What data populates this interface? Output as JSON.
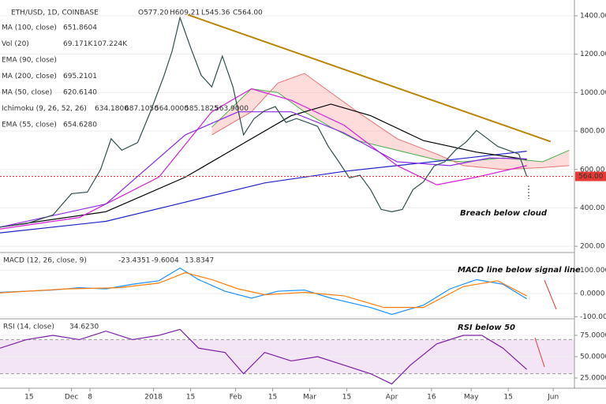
{
  "header": {
    "symbol": "ETH/USD, 1D, COINBASE",
    "ohlc": [
      "O577.20",
      "H609.21",
      "L545.36",
      "C564.00"
    ]
  },
  "indicators": [
    {
      "name": "MA (100, close)",
      "values": [
        "651.8604"
      ],
      "colors": [
        "#000000"
      ]
    },
    {
      "name": "Vol (20)",
      "values": [
        "69.171K",
        "107.224K"
      ],
      "colors": [
        "#d9534f",
        "#1e62c8"
      ]
    },
    {
      "name": "EMA (90, close)",
      "values": [],
      "colors": []
    },
    {
      "name": "MA (200, close)",
      "values": [
        "695.2101"
      ],
      "colors": [
        "#1e22c8"
      ]
    },
    {
      "name": "MA (50, close)",
      "values": [
        "620.6140"
      ],
      "colors": [
        "#d61fd6"
      ]
    },
    {
      "name": "Ichimoku (9, 26, 52, 26)",
      "values": [
        "634.1800",
        "687.1050",
        "564.0000",
        "585.1825",
        "563.9000"
      ],
      "colors": [
        "#1e62c8",
        "#8b0000",
        "#6b8e23",
        "#2e8b57",
        "#d9534f"
      ]
    },
    {
      "name": "EMA (55, close)",
      "values": [
        "654.6280"
      ],
      "colors": [
        "#8a2be2"
      ]
    }
  ],
  "chart_data": [
    {
      "type": "line",
      "ylim": [
        176,
        1482
      ],
      "yticks": [
        {
          "value": 200,
          "label": "200.00"
        },
        {
          "value": 400,
          "label": "400.00"
        },
        {
          "value": 600,
          "label": "600.00"
        },
        {
          "value": 800,
          "label": "800.00"
        },
        {
          "value": 1000,
          "label": "1000.00"
        },
        {
          "value": 1200,
          "label": "1200.00"
        },
        {
          "value": 1400,
          "label": "1400.00"
        }
      ],
      "last_price": {
        "value": 564,
        "label": "564.00"
      },
      "cloud": {
        "x": [
          80,
          95,
          105,
          115,
          125,
          135,
          150,
          165,
          175,
          190,
          205,
          215
        ],
        "span_a": [
          820,
          1020,
          1000,
          900,
          820,
          750,
          700,
          650,
          640,
          660,
          640,
          700
        ],
        "span_b": [
          780,
          900,
          1050,
          1100,
          1000,
          900,
          760,
          680,
          620,
          600,
          610,
          620
        ]
      },
      "trendline": {
        "x": [
          71,
          208
        ],
        "values": [
          1405,
          745
        ],
        "color": "#b8860b"
      },
      "series": [
        {
          "color": "#1e22c8",
          "x": [
            0,
            40,
            70,
            100,
            130,
            150,
            170,
            199
          ],
          "values": [
            270,
            330,
            430,
            530,
            590,
            620,
            650,
            695
          ]
        },
        {
          "color": "#000000",
          "x": [
            0,
            40,
            70,
            90,
            110,
            125,
            140,
            160,
            180,
            199
          ],
          "values": [
            300,
            380,
            560,
            720,
            880,
            940,
            880,
            750,
            690,
            652
          ]
        },
        {
          "color": "#d61fd6",
          "x": [
            0,
            30,
            60,
            80,
            95,
            110,
            130,
            150,
            165,
            180,
            199
          ],
          "values": [
            290,
            350,
            560,
            900,
            1020,
            960,
            830,
            620,
            520,
            560,
            620
          ]
        },
        {
          "color": "#8a2be2",
          "x": [
            0,
            40,
            70,
            90,
            110,
            130,
            150,
            170,
            185,
            199
          ],
          "values": [
            300,
            420,
            780,
            900,
            900,
            790,
            640,
            620,
            660,
            655
          ]
        },
        {
          "color": "#2f4f4f",
          "x": [
            0,
            10,
            20,
            27,
            33,
            38,
            42,
            46,
            52,
            57,
            62,
            65,
            68,
            72,
            76,
            80,
            84,
            88,
            92,
            96,
            100,
            104,
            108,
            112,
            116,
            120,
            124,
            128,
            132,
            136,
            140,
            144,
            148,
            152,
            156,
            160,
            164,
            168,
            172,
            176,
            180,
            184,
            188,
            192,
            196,
            199
          ],
          "values": [
            300,
            318,
            363,
            474,
            482,
            600,
            760,
            700,
            740,
            906,
            1090,
            1215,
            1390,
            1235,
            1090,
            1030,
            1190,
            1030,
            780,
            865,
            906,
            927,
            845,
            865,
            845,
            824,
            720,
            640,
            556,
            570,
            495,
            392,
            380,
            392,
            495,
            536,
            618,
            640,
            700,
            742,
            803,
            762,
            720,
            700,
            680,
            564
          ]
        }
      ],
      "annotation": "Breach below cloud"
    },
    {
      "type": "line",
      "title": "MACD (12, 26, close, 9)",
      "readouts": [
        "-23.4351",
        "-9.6004",
        "13.8347"
      ],
      "ylim": [
        -102,
        170
      ],
      "yticks": [
        {
          "value": -100,
          "label": "-100.0000"
        },
        {
          "value": 0,
          "label": "0.0000"
        },
        {
          "value": 100,
          "label": "100.0000"
        }
      ],
      "series": [
        {
          "color": "#1e90ff",
          "x": [
            0,
            20,
            30,
            40,
            50,
            60,
            68,
            75,
            85,
            95,
            105,
            115,
            125,
            140,
            148,
            160,
            170,
            180,
            190,
            199
          ],
          "values": [
            5,
            15,
            25,
            20,
            40,
            55,
            110,
            60,
            10,
            -20,
            10,
            15,
            -20,
            -60,
            -90,
            -50,
            20,
            60,
            40,
            -23
          ]
        },
        {
          "color": "#ff7f0e",
          "x": [
            0,
            25,
            45,
            60,
            70,
            80,
            90,
            100,
            115,
            130,
            145,
            160,
            175,
            188,
            199
          ],
          "values": [
            3,
            20,
            25,
            45,
            90,
            60,
            20,
            -5,
            5,
            -10,
            -60,
            -60,
            30,
            55,
            -10
          ]
        }
      ],
      "annotation": "MACD line below signal line"
    },
    {
      "type": "line",
      "title": "RSI (14, close)",
      "readouts": [
        "34.6230"
      ],
      "ylim": [
        13,
        92.6
      ],
      "band": [
        30,
        70
      ],
      "yticks": [
        {
          "value": 25,
          "label": "25.0000"
        },
        {
          "value": 50,
          "label": "50.0000"
        },
        {
          "value": 75,
          "label": "75.0000"
        }
      ],
      "xlim": [
        0,
        217
      ],
      "xticks": [
        {
          "value": 11,
          "label": "15"
        },
        {
          "value": 27,
          "label": "Dec"
        },
        {
          "value": 34,
          "label": "8"
        },
        {
          "value": 58,
          "label": "2018"
        },
        {
          "value": 72,
          "label": "15"
        },
        {
          "value": 89,
          "label": "Feb"
        },
        {
          "value": 103,
          "label": "15"
        },
        {
          "value": 117,
          "label": "Mar"
        },
        {
          "value": 131,
          "label": "15"
        },
        {
          "value": 148,
          "label": "Apr"
        },
        {
          "value": 163,
          "label": "16"
        },
        {
          "value": 178,
          "label": "May"
        },
        {
          "value": 192,
          "label": "15"
        },
        {
          "value": 209,
          "label": "Jun"
        }
      ],
      "series": [
        {
          "color": "#7b1fa2",
          "x": [
            0,
            10,
            20,
            30,
            40,
            50,
            60,
            68,
            75,
            85,
            92,
            100,
            110,
            120,
            130,
            140,
            148,
            155,
            165,
            175,
            182,
            190,
            199
          ],
          "values": [
            60,
            70,
            75,
            70,
            80,
            70,
            75,
            82,
            60,
            55,
            30,
            55,
            45,
            50,
            40,
            30,
            18,
            40,
            65,
            75,
            75,
            60,
            35
          ]
        }
      ],
      "annotation": "RSI below 50"
    }
  ]
}
